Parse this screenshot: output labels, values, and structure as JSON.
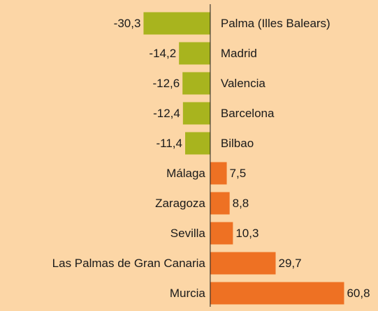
{
  "chart_data": {
    "type": "bar",
    "orientation": "horizontal",
    "categories": [
      "Palma (Illes Balears)",
      "Madrid",
      "Valencia",
      "Barcelona",
      "Bilbao",
      "Málaga",
      "Zaragoza",
      "Sevilla",
      "Las Palmas de Gran Canaria",
      "Murcia"
    ],
    "values": [
      -30.3,
      -14.2,
      -12.6,
      -12.4,
      -11.4,
      7.5,
      8.8,
      10.3,
      29.7,
      60.8
    ],
    "value_labels": [
      "-30,3",
      "-14,2",
      "-12,6",
      "-12,4",
      "-11,4",
      "7,5",
      "8,8",
      "10,3",
      "29,7",
      "60,8"
    ],
    "negative_color": "#a8b41e",
    "positive_color": "#ee7123",
    "xlim": [
      -95.5,
      76.2
    ]
  }
}
